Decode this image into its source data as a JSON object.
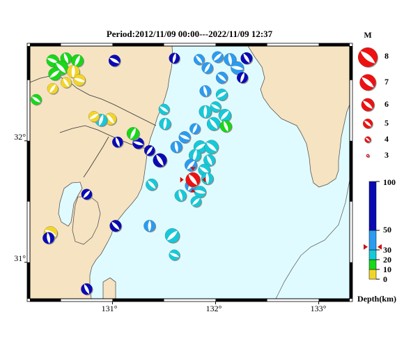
{
  "title": "Period:2012/11/09 00:00---2022/11/09 12:37",
  "map": {
    "lon_labels": [
      "131°",
      "132°",
      "133°"
    ],
    "lat_labels": [
      "32°",
      "31°"
    ],
    "colors": {
      "sea": "#e0fbff",
      "land": "#f6e3c2",
      "coast": "#555555",
      "boundary": "#333333"
    }
  },
  "magnitude_legend": {
    "title": "M",
    "items": [
      {
        "label": "8",
        "magnitude": 8
      },
      {
        "label": "7",
        "magnitude": 7
      },
      {
        "label": "6",
        "magnitude": 6
      },
      {
        "label": "5",
        "magnitude": 5
      },
      {
        "label": "4",
        "magnitude": 4
      },
      {
        "label": "3",
        "magnitude": 3
      }
    ]
  },
  "depth_legend": {
    "title": "Depth(km)",
    "ticks": [
      "100",
      "50",
      "30",
      "20",
      "10",
      "0"
    ],
    "bands": [
      {
        "from": 0,
        "to": 10,
        "color": "#f2d52a"
      },
      {
        "from": 10,
        "to": 20,
        "color": "#18d818"
      },
      {
        "from": 20,
        "to": 30,
        "color": "#16c9d8"
      },
      {
        "from": 30,
        "to": 50,
        "color": "#2b9cf0"
      },
      {
        "from": 50,
        "to": 100,
        "color": "#0a0ab4"
      }
    ],
    "latest_event_depth": 33
  },
  "latest_event": {
    "lon": 131.78,
    "lat": 31.68,
    "magnitude": 5.2,
    "color": "#ee1111"
  }
}
